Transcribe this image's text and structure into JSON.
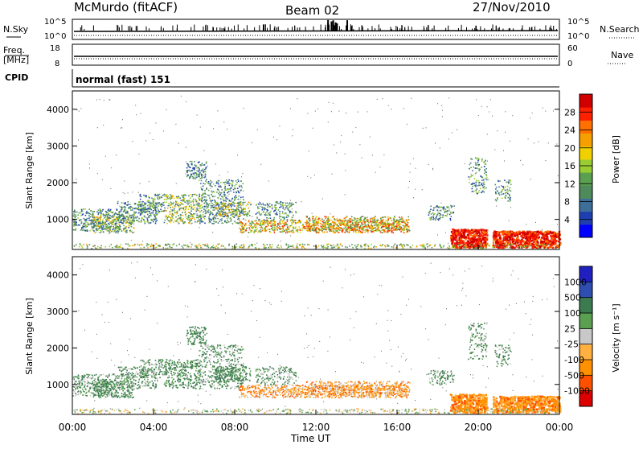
{
  "header": {
    "station": "McMurdo (fitACF)",
    "beam": "Beam 02",
    "date": "27/Nov/2010"
  },
  "status_panels": {
    "nsky_label": "N.Sky",
    "nsearch_label": "N.Search",
    "nsky_ticks": [
      "10^5",
      "10^0"
    ],
    "nsearch_ticks": [
      "10^5",
      "10^0"
    ],
    "freq_label_1": "Freq.",
    "freq_label_2": "[MHz]",
    "freq_ticks": [
      "18",
      "8"
    ],
    "nave_label": "Nave",
    "nave_ticks": [
      "60",
      "0"
    ],
    "cpid_label": "CPID",
    "cpid_value": "normal (fast) 151"
  },
  "colors": {
    "power_scale": [
      "#0000ff",
      "#1f3fb0",
      "#3e6f98",
      "#4f8a5a",
      "#5aa050",
      "#9acd32",
      "#f0d000",
      "#f5a000",
      "#ff7000",
      "#ff2000",
      "#d00000"
    ],
    "velocity_scale": [
      "#dd0000",
      "#ff5000",
      "#ff9000",
      "#ffb040",
      "#c8c8c8",
      "#5aa050",
      "#3c7a50",
      "#2f4fb0",
      "#2020c0"
    ]
  },
  "chart_data": [
    {
      "type": "heatmap",
      "name": "power",
      "ylabel": "Slant Range [km]",
      "yticks": [
        "4000",
        "3000",
        "2000",
        "1000"
      ],
      "ylim": [
        180,
        4500
      ],
      "colorbar_label": "Power [dB]",
      "colorbar_ticks": [
        "28",
        "24",
        "20",
        "16",
        "12",
        "8",
        "4"
      ]
    },
    {
      "type": "heatmap",
      "name": "velocity",
      "ylabel": "Slant Range [km]",
      "yticks": [
        "4000",
        "3000",
        "2000",
        "1000"
      ],
      "ylim": [
        180,
        4500
      ],
      "colorbar_label": "Velocity [m s⁻¹]",
      "colorbar_ticks": [
        "1000",
        "500",
        "100",
        "25",
        "-25",
        "-100",
        "-500",
        "-1000"
      ]
    }
  ],
  "x_axis": {
    "ticks": [
      "00:00",
      "04:00",
      "08:00",
      "12:00",
      "16:00",
      "20:00",
      "00:00"
    ],
    "label": "Time UT"
  }
}
